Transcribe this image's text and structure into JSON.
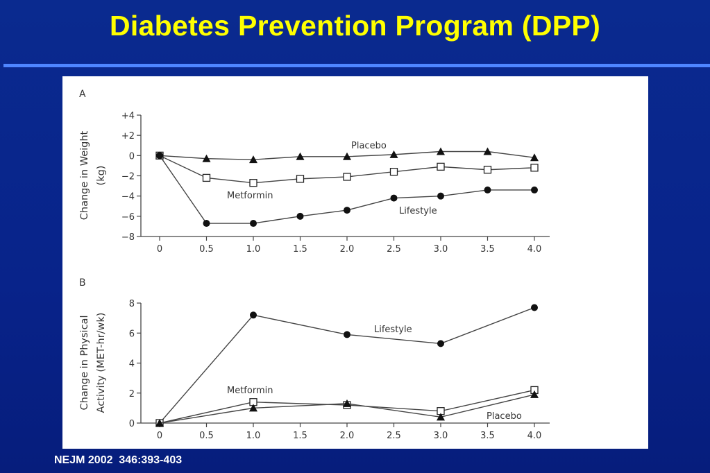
{
  "slide": {
    "title": "Diabetes Prevention Program (DPP)",
    "citation": "NEJM 2002  346:393-403"
  },
  "colors": {
    "background": "#0a2a8f",
    "title": "#ffff00",
    "rule": "#4f86ff"
  },
  "chart_data": [
    {
      "panel_label": "A",
      "type": "line",
      "ylabel": [
        "Change in Weight",
        "(kg)"
      ],
      "x": [
        0,
        0.5,
        1.0,
        1.5,
        2.0,
        2.5,
        3.0,
        3.5,
        4.0
      ],
      "xticks": [
        "0",
        "0.5",
        "1.0",
        "1.5",
        "2.0",
        "2.5",
        "3.0",
        "3.5",
        "4.0"
      ],
      "ylim": [
        -8,
        4
      ],
      "yticks": [
        4,
        2,
        0,
        -2,
        -4,
        -6,
        -8
      ],
      "ytick_labels": [
        "+4",
        "+2",
        "0",
        "−2",
        "−4",
        "−6",
        "−8"
      ],
      "series": [
        {
          "name": "Placebo",
          "marker": "triangle",
          "values": [
            0,
            -0.3,
            -0.4,
            -0.1,
            -0.1,
            0.1,
            0.4,
            0.4,
            -0.2
          ]
        },
        {
          "name": "Metformin",
          "marker": "square",
          "values": [
            0,
            -2.2,
            -2.7,
            -2.3,
            -2.1,
            -1.6,
            -1.1,
            -1.4,
            -1.2
          ]
        },
        {
          "name": "Lifestyle",
          "marker": "circle",
          "values": [
            0,
            -6.7,
            -6.7,
            -6.0,
            -5.4,
            -4.2,
            -4.0,
            -3.4,
            -3.4
          ]
        }
      ]
    },
    {
      "panel_label": "B",
      "type": "line",
      "ylabel": [
        "Change in Physical",
        "Activity (MET-hr/wk)"
      ],
      "x": [
        0,
        1.0,
        2.0,
        3.0,
        4.0
      ],
      "xticks": [
        "0",
        "0.5",
        "1.0",
        "1.5",
        "2.0",
        "2.5",
        "3.0",
        "3.5",
        "4.0"
      ],
      "ylim": [
        0,
        8
      ],
      "yticks": [
        8,
        6,
        4,
        2,
        0
      ],
      "ytick_labels": [
        "8",
        "6",
        "4",
        "2",
        "0"
      ],
      "series": [
        {
          "name": "Lifestyle",
          "marker": "circle",
          "values": [
            0,
            7.2,
            5.9,
            5.3,
            7.7
          ]
        },
        {
          "name": "Metformin",
          "marker": "square",
          "values": [
            0,
            1.4,
            1.2,
            0.8,
            2.2
          ]
        },
        {
          "name": "Placebo",
          "marker": "triangle",
          "values": [
            0,
            1.0,
            1.3,
            0.4,
            1.9
          ]
        }
      ]
    }
  ]
}
